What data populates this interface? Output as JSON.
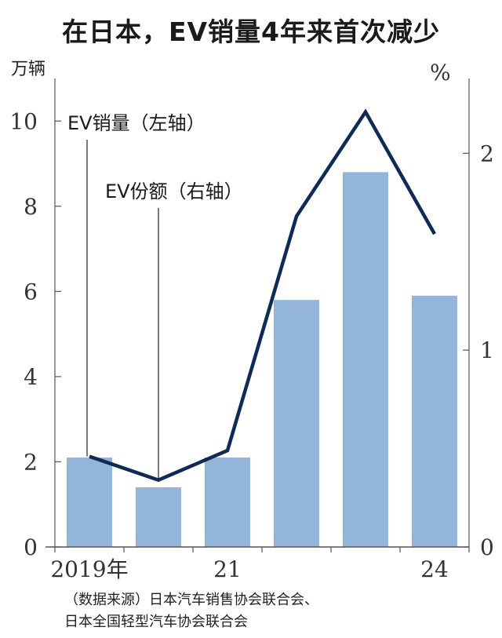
{
  "chart_data": {
    "type": "bar",
    "title": "在日本，EV销量4年来首次减少",
    "categories": [
      "2019年",
      "",
      "21",
      "",
      "",
      "24"
    ],
    "left_unit": "万辆",
    "right_unit": "%",
    "left_ticks": [
      "0",
      "2",
      "4",
      "6",
      "8",
      "10"
    ],
    "right_ticks": [
      "0",
      "1",
      "2"
    ],
    "ylim_left": [
      0,
      11
    ],
    "ylim_right": [
      0,
      2.38
    ],
    "series": [
      {
        "name": "EV销量（左轴）",
        "type": "bar",
        "axis": "left",
        "values": [
          2.1,
          1.4,
          2.1,
          5.8,
          8.8,
          5.9
        ]
      },
      {
        "name": "EV份额（右轴）",
        "type": "line",
        "axis": "right",
        "values": [
          0.46,
          0.34,
          0.49,
          1.68,
          2.21,
          1.59
        ]
      }
    ],
    "colors": {
      "bar": "#93b5d9",
      "line": "#0f2a57",
      "axis": "#555555"
    }
  },
  "source": {
    "line1": "（数据来源）日本汽车销售协会联合会、",
    "line2": "日本全国轻型汽车协会联合会"
  }
}
